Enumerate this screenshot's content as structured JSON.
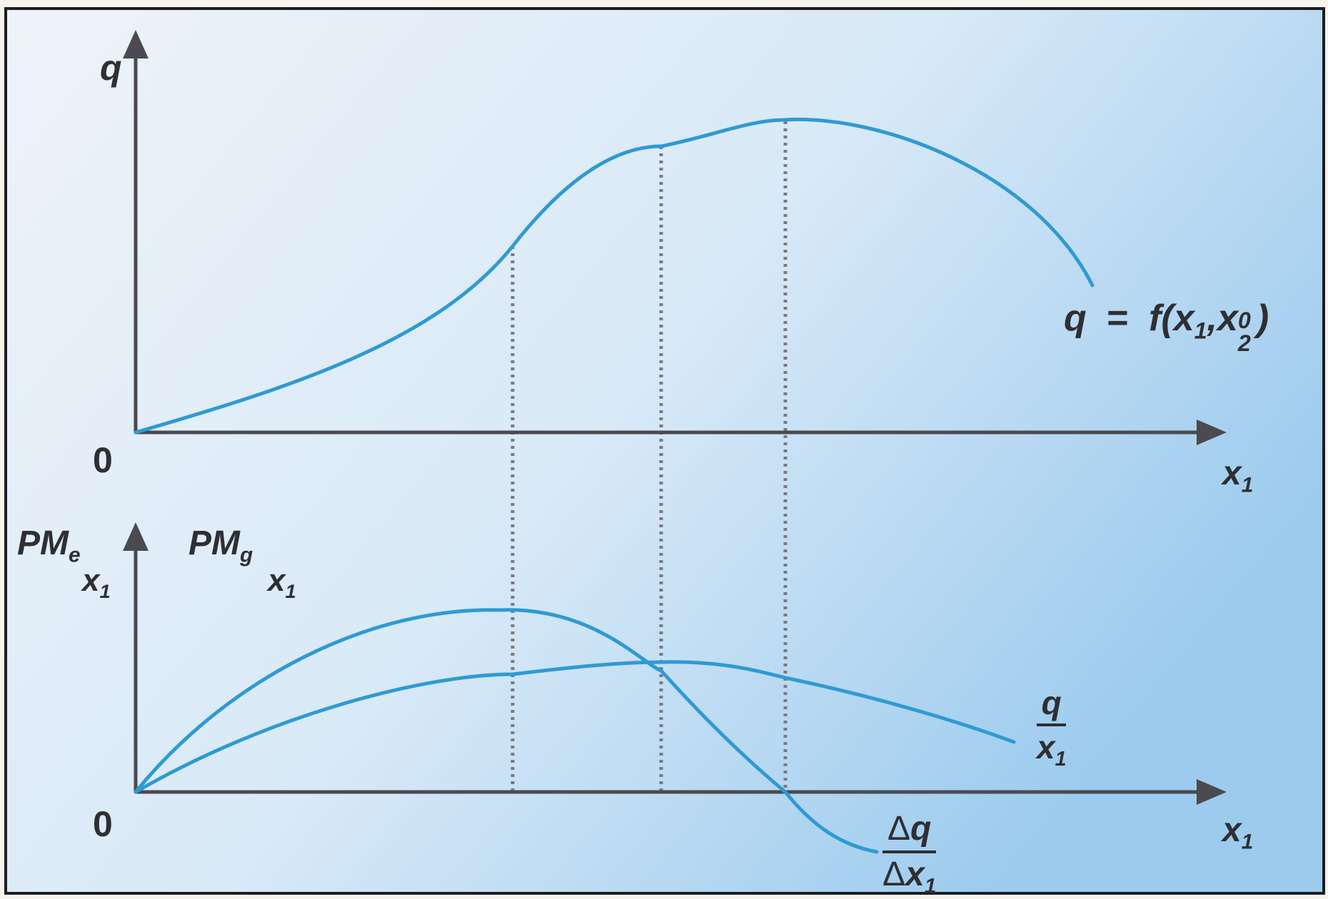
{
  "diagram": {
    "colors": {
      "background_light": "#eef3f9",
      "background_dark": "#9ccbee",
      "curve": "#2f9ad3",
      "axis": "#4a4a4f",
      "guide": "#7a7a80",
      "text": "#2f2f33",
      "frame": "#1d1d22"
    },
    "top_panel": {
      "y_axis_label": "q",
      "origin_label": "0",
      "x_axis_label": {
        "base": "x",
        "sub": "1"
      },
      "curve_label": {
        "lhs": "q",
        "eq": "=",
        "func": "f(",
        "x1": "x",
        "x1_sub": "1",
        "comma": ",",
        "x2": "x",
        "x2_sub": "2",
        "x2_sup": "0",
        "close": ")"
      }
    },
    "bottom_panel": {
      "y_axis_label_1": {
        "base": "PM",
        "sub": "e",
        "under": "x",
        "under_sub": "1"
      },
      "y_axis_label_2": {
        "base": "PM",
        "sub": "g",
        "under": "x",
        "under_sub": "1"
      },
      "origin_label": "0",
      "x_axis_label": {
        "base": "x",
        "sub": "1"
      },
      "average_product_label": {
        "num": "q",
        "den": "x",
        "den_sub": "1"
      },
      "marginal_product_label": {
        "num_delta": "Δ",
        "num": "q",
        "den_delta": "Δ",
        "den": "x",
        "den_sub": "1"
      }
    },
    "curves": [
      "total-product",
      "marginal-product",
      "average-product"
    ],
    "guide_lines": [
      "inflection-point",
      "max-average-product",
      "max-total-product"
    ]
  }
}
